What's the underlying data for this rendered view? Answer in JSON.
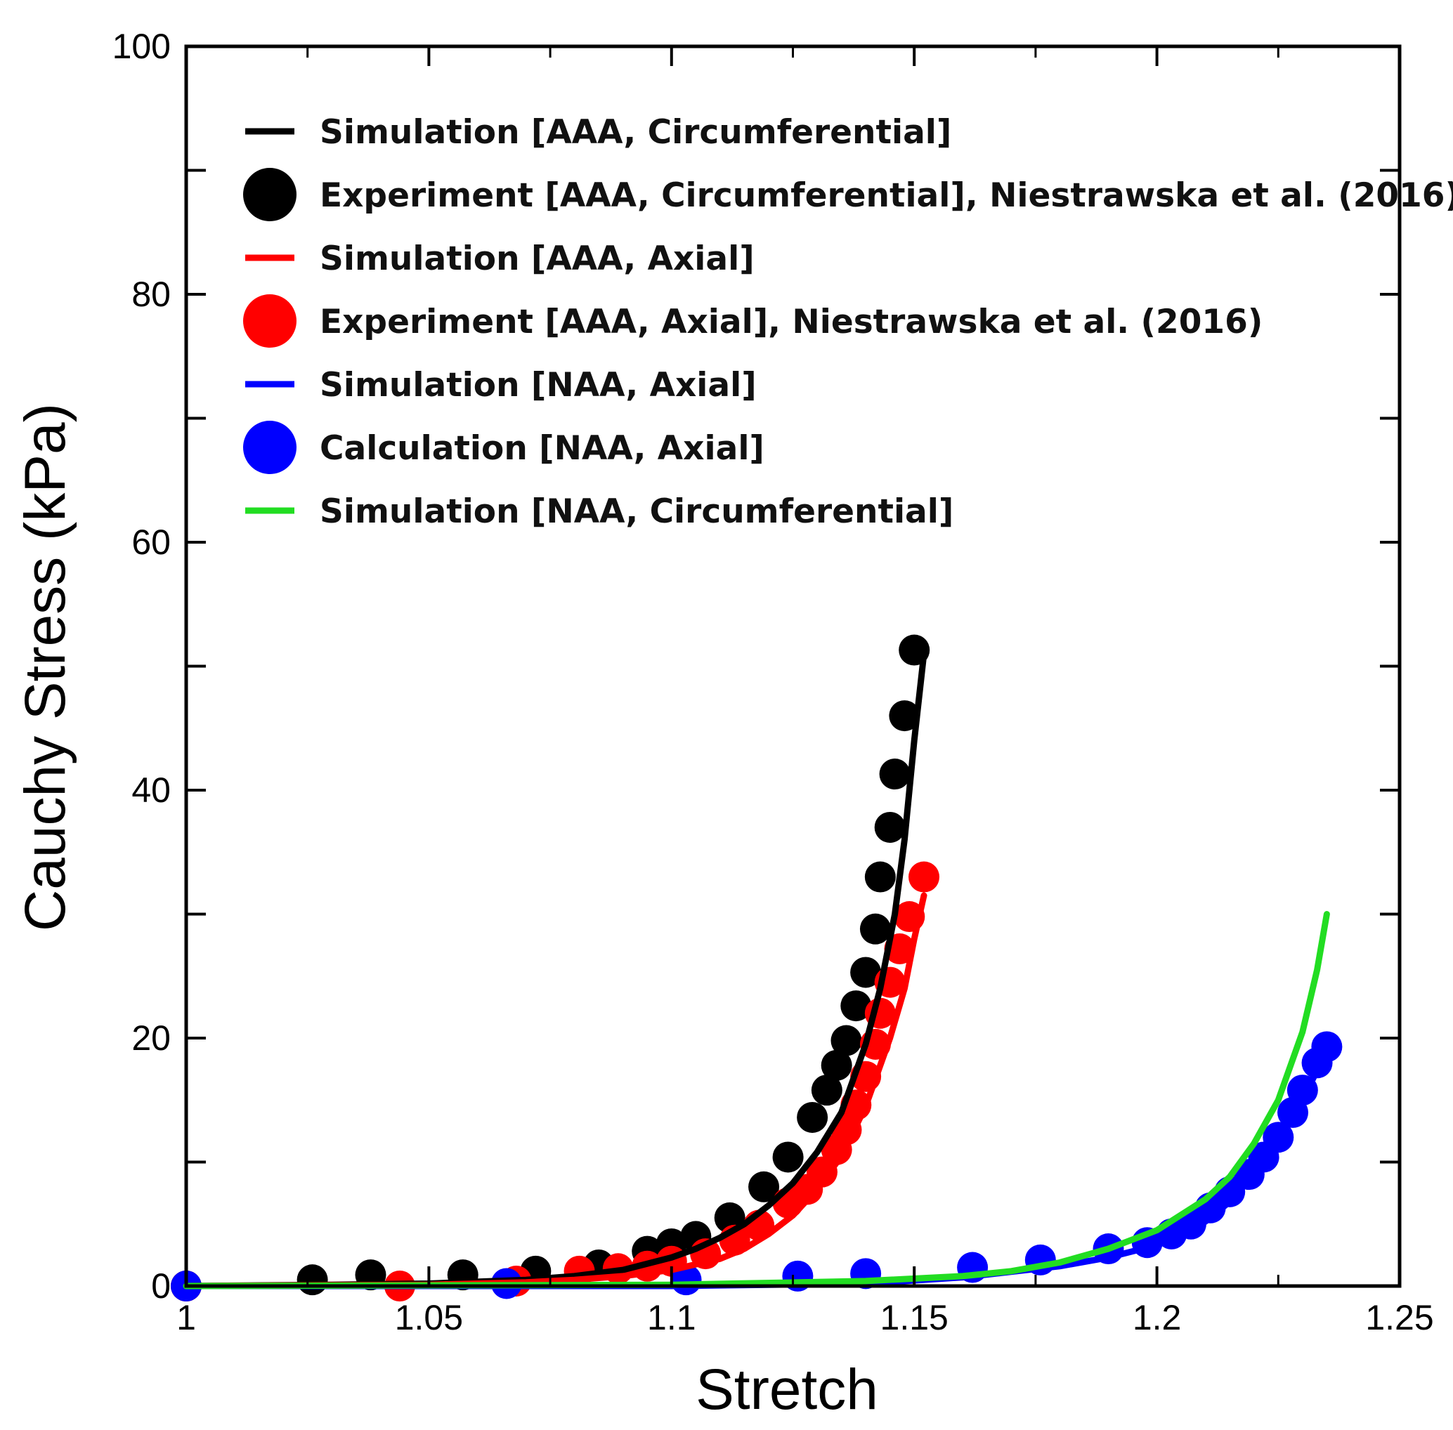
{
  "chart_data": {
    "type": "scatter",
    "title": "",
    "xlabel": "Stretch",
    "ylabel": "Cauchy Stress (kPa)",
    "xlim": [
      1,
      1.25
    ],
    "ylim": [
      0,
      100
    ],
    "xticks": [
      "1",
      "1.05",
      "1.1",
      "1.15",
      "1.2",
      "1.25"
    ],
    "yticks": [
      "0",
      "20",
      "40",
      "60",
      "80",
      "100"
    ],
    "grid": false,
    "legend_position": "top-left",
    "series": [
      {
        "name": "Simulation [AAA, Circumferential]",
        "kind": "line",
        "color": "#000000",
        "points": [
          [
            1.0,
            0
          ],
          [
            1.03,
            0.1
          ],
          [
            1.05,
            0.2
          ],
          [
            1.07,
            0.5
          ],
          [
            1.08,
            0.8
          ],
          [
            1.09,
            1.3
          ],
          [
            1.1,
            2.3
          ],
          [
            1.105,
            3.0
          ],
          [
            1.11,
            3.9
          ],
          [
            1.115,
            5.0
          ],
          [
            1.12,
            6.5
          ],
          [
            1.125,
            8.3
          ],
          [
            1.13,
            10.8
          ],
          [
            1.135,
            14.0
          ],
          [
            1.14,
            19.5
          ],
          [
            1.143,
            24.0
          ],
          [
            1.146,
            30.0
          ],
          [
            1.148,
            36.0
          ],
          [
            1.15,
            44.0
          ],
          [
            1.152,
            51.0
          ]
        ]
      },
      {
        "name": "Experiment [AAA, Circumferential], Niestrawska et al. (2016)",
        "kind": "marker",
        "color": "#000000",
        "points": [
          [
            1.0,
            0
          ],
          [
            1.026,
            0.5
          ],
          [
            1.038,
            0.9
          ],
          [
            1.057,
            0.9
          ],
          [
            1.072,
            1.2
          ],
          [
            1.085,
            1.7
          ],
          [
            1.095,
            2.8
          ],
          [
            1.1,
            3.4
          ],
          [
            1.105,
            4.0
          ],
          [
            1.112,
            5.5
          ],
          [
            1.119,
            8.0
          ],
          [
            1.124,
            10.4
          ],
          [
            1.129,
            13.6
          ],
          [
            1.132,
            15.8
          ],
          [
            1.134,
            17.8
          ],
          [
            1.136,
            19.8
          ],
          [
            1.138,
            22.6
          ],
          [
            1.14,
            25.3
          ],
          [
            1.142,
            28.8
          ],
          [
            1.143,
            33.0
          ],
          [
            1.145,
            37.0
          ],
          [
            1.146,
            41.3
          ],
          [
            1.148,
            46.0
          ],
          [
            1.15,
            51.3
          ]
        ]
      },
      {
        "name": "Simulation [AAA, Axial]",
        "kind": "line",
        "color": "#ff0000",
        "points": [
          [
            1.0,
            0
          ],
          [
            1.05,
            0.1
          ],
          [
            1.07,
            0.3
          ],
          [
            1.08,
            0.5
          ],
          [
            1.09,
            0.8
          ],
          [
            1.1,
            1.3
          ],
          [
            1.11,
            2.2
          ],
          [
            1.115,
            3.0
          ],
          [
            1.12,
            4.2
          ],
          [
            1.125,
            5.7
          ],
          [
            1.13,
            7.8
          ],
          [
            1.135,
            10.5
          ],
          [
            1.14,
            14.5
          ],
          [
            1.145,
            20.0
          ],
          [
            1.148,
            24.0
          ],
          [
            1.15,
            28.0
          ],
          [
            1.152,
            31.5
          ]
        ]
      },
      {
        "name": "Experiment [AAA, Axial], Niestrawska et al. (2016)",
        "kind": "marker",
        "color": "#ff0000",
        "points": [
          [
            1.0,
            0
          ],
          [
            1.044,
            0
          ],
          [
            1.068,
            0.4
          ],
          [
            1.081,
            1.2
          ],
          [
            1.089,
            1.4
          ],
          [
            1.095,
            1.6
          ],
          [
            1.1,
            2.0
          ],
          [
            1.107,
            2.6
          ],
          [
            1.113,
            3.7
          ],
          [
            1.118,
            4.9
          ],
          [
            1.124,
            6.7
          ],
          [
            1.128,
            7.8
          ],
          [
            1.131,
            9.2
          ],
          [
            1.134,
            11.0
          ],
          [
            1.136,
            12.6
          ],
          [
            1.138,
            14.6
          ],
          [
            1.14,
            16.9
          ],
          [
            1.142,
            19.5
          ],
          [
            1.143,
            22.0
          ],
          [
            1.145,
            24.5
          ],
          [
            1.147,
            27.2
          ],
          [
            1.149,
            29.8
          ],
          [
            1.152,
            33.0
          ]
        ]
      },
      {
        "name": "Simulation [NAA, Axial]",
        "kind": "line",
        "color": "#0000ff",
        "points": [
          [
            1.0,
            0
          ],
          [
            1.1,
            0
          ],
          [
            1.14,
            0.2
          ],
          [
            1.16,
            0.7
          ],
          [
            1.18,
            1.6
          ],
          [
            1.19,
            2.3
          ],
          [
            1.2,
            3.3
          ],
          [
            1.21,
            5.2
          ],
          [
            1.215,
            6.8
          ],
          [
            1.22,
            9.0
          ],
          [
            1.225,
            11.7
          ],
          [
            1.23,
            15.0
          ],
          [
            1.235,
            19.0
          ]
        ]
      },
      {
        "name": "Calculation [NAA, Axial]",
        "kind": "marker",
        "color": "#0000ff",
        "points": [
          [
            1.0,
            0
          ],
          [
            1.066,
            0.2
          ],
          [
            1.103,
            0.5
          ],
          [
            1.126,
            0.8
          ],
          [
            1.14,
            1.0
          ],
          [
            1.162,
            1.5
          ],
          [
            1.176,
            2.1
          ],
          [
            1.19,
            3.0
          ],
          [
            1.198,
            3.5
          ],
          [
            1.203,
            4.2
          ],
          [
            1.207,
            5.0
          ],
          [
            1.211,
            6.3
          ],
          [
            1.215,
            7.6
          ],
          [
            1.219,
            9.0
          ],
          [
            1.222,
            10.4
          ],
          [
            1.225,
            12.0
          ],
          [
            1.228,
            14.0
          ],
          [
            1.23,
            15.8
          ],
          [
            1.233,
            18.0
          ],
          [
            1.235,
            19.3
          ]
        ]
      },
      {
        "name": "Simulation [NAA, Circumferential]",
        "kind": "line",
        "color": "#22dd22",
        "points": [
          [
            1.0,
            0
          ],
          [
            1.1,
            0.1
          ],
          [
            1.14,
            0.4
          ],
          [
            1.16,
            0.8
          ],
          [
            1.17,
            1.2
          ],
          [
            1.18,
            1.9
          ],
          [
            1.19,
            3.0
          ],
          [
            1.2,
            4.5
          ],
          [
            1.21,
            7.0
          ],
          [
            1.215,
            8.8
          ],
          [
            1.22,
            11.5
          ],
          [
            1.225,
            15.0
          ],
          [
            1.23,
            20.5
          ],
          [
            1.233,
            25.5
          ],
          [
            1.235,
            30.0
          ]
        ]
      }
    ]
  }
}
